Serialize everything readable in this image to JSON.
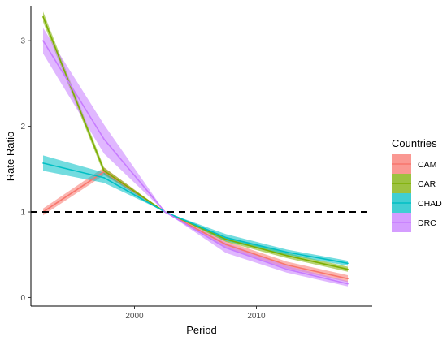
{
  "chart_data": {
    "type": "line",
    "xlabel": "Period",
    "ylabel": "Rate Ratio",
    "xlim": [
      1991.5,
      2019.5
    ],
    "ylim": [
      -0.1,
      3.4
    ],
    "x_ticks": [
      2000,
      2010
    ],
    "y_ticks": [
      0,
      1,
      2,
      3
    ],
    "reference_line": {
      "y": 1,
      "style": "dashed",
      "color": "#000000"
    },
    "grid": false,
    "legend": {
      "title": "Countries",
      "position": "right"
    },
    "x": [
      1992.5,
      1997.5,
      2002.5,
      2007.5,
      2012.5,
      2017.5
    ],
    "series": [
      {
        "name": "CAM",
        "color": "#F8766D",
        "values": [
          1.0,
          1.47,
          1.0,
          0.62,
          0.38,
          0.22
        ],
        "lower": [
          0.96,
          1.43,
          1.0,
          0.58,
          0.34,
          0.18
        ],
        "upper": [
          1.04,
          1.52,
          1.0,
          0.66,
          0.42,
          0.26
        ]
      },
      {
        "name": "CAR",
        "color": "#7CAE00",
        "values": [
          3.28,
          1.48,
          1.0,
          0.68,
          0.49,
          0.33
        ],
        "lower": [
          3.22,
          1.44,
          1.0,
          0.65,
          0.46,
          0.3
        ],
        "upper": [
          3.34,
          1.52,
          1.0,
          0.71,
          0.52,
          0.36
        ]
      },
      {
        "name": "CHAD",
        "color": "#00BFC4",
        "values": [
          1.57,
          1.4,
          1.0,
          0.7,
          0.53,
          0.4
        ],
        "lower": [
          1.48,
          1.34,
          1.0,
          0.66,
          0.5,
          0.37
        ],
        "upper": [
          1.66,
          1.46,
          1.0,
          0.74,
          0.56,
          0.43
        ]
      },
      {
        "name": "DRC",
        "color": "#C77CFF",
        "values": [
          3.0,
          1.85,
          1.0,
          0.58,
          0.33,
          0.16
        ],
        "lower": [
          2.85,
          1.68,
          1.0,
          0.52,
          0.29,
          0.13
        ],
        "upper": [
          3.15,
          2.02,
          1.0,
          0.64,
          0.37,
          0.19
        ]
      }
    ]
  }
}
